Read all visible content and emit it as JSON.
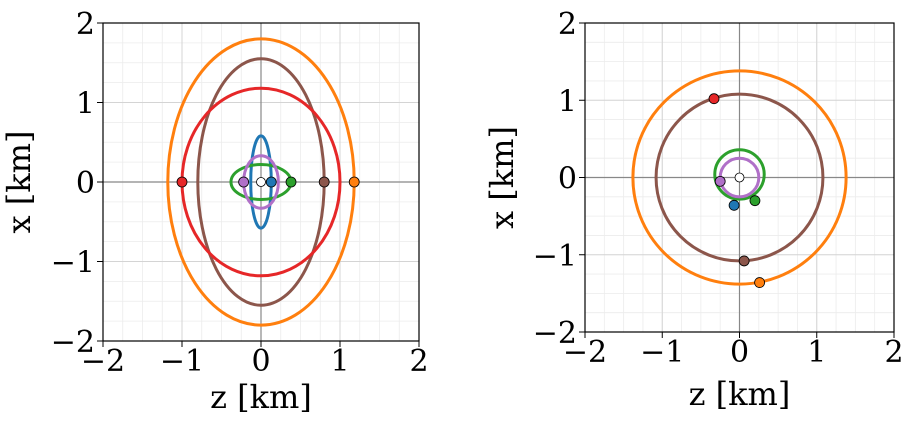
{
  "chart_data": [
    {
      "type": "line",
      "subtype": "orbit-ellipses",
      "xlabel": "z [km]",
      "ylabel": "x [km]",
      "xlim": [
        -2,
        2
      ],
      "ylim": [
        -2,
        2
      ],
      "xticks": [
        -2,
        -1,
        0,
        1,
        2
      ],
      "yticks": [
        -2,
        -1,
        0,
        1,
        2
      ],
      "grid": true,
      "aspect": "equal",
      "center_marker": {
        "z": 0,
        "x": 0,
        "color": "#ffffff"
      },
      "series": [
        {
          "shape": "ellipse",
          "color": "#ff7f0e",
          "z_semi": 1.18,
          "x_semi": 1.8,
          "marker": {
            "z": 1.18,
            "x": 0
          }
        },
        {
          "shape": "ellipse",
          "color": "#8c564b",
          "z_semi": 0.8,
          "x_semi": 1.55,
          "marker": {
            "z": 0.8,
            "x": 0
          }
        },
        {
          "shape": "ellipse",
          "color": "#e62728",
          "z_semi": 1.0,
          "x_semi": 1.18,
          "marker": {
            "z": -1.0,
            "x": 0
          }
        },
        {
          "shape": "ellipse",
          "color": "#1f77b4",
          "z_semi": 0.13,
          "x_semi": 0.58,
          "marker": {
            "z": 0.13,
            "x": 0
          }
        },
        {
          "shape": "ellipse",
          "color": "#2ca02c",
          "z_semi": 0.38,
          "x_semi": 0.22,
          "marker": {
            "z": 0.38,
            "x": 0
          }
        },
        {
          "shape": "ellipse",
          "color": "#b070c8",
          "z_semi": 0.22,
          "x_semi": 0.33,
          "marker": {
            "z": -0.22,
            "x": 0
          }
        }
      ]
    },
    {
      "type": "line",
      "subtype": "orbit-circles",
      "xlabel": "z [km]",
      "ylabel": "x [km]",
      "xlim": [
        -2,
        2
      ],
      "ylim": [
        -2,
        2
      ],
      "xticks": [
        -2,
        -1,
        0,
        1,
        2
      ],
      "yticks": [
        -2,
        -1,
        0,
        1,
        2
      ],
      "grid": true,
      "aspect": "equal",
      "center_marker": {
        "z": 0,
        "x": 0,
        "color": "#ffffff"
      },
      "series": [
        {
          "shape": "circle",
          "color": "#ff7f0e",
          "cz": 0.0,
          "cx": 0.0,
          "r": 1.38,
          "marker": {
            "z": 0.26,
            "x": -1.36
          }
        },
        {
          "shape": "circle",
          "color": "#8c564b",
          "cz": 0.0,
          "cx": 0.0,
          "r": 1.08,
          "marker": {
            "z": 0.06,
            "x": -1.08
          }
        },
        {
          "shape": "circle",
          "color": "#2ca02c",
          "cz": 0.0,
          "cx": 0.04,
          "r": 0.32,
          "marker": {
            "z": 0.2,
            "x": -0.3
          }
        },
        {
          "shape": "circle",
          "color": "#b070c8",
          "cz": 0.0,
          "cx": 0.0,
          "r": 0.25,
          "marker": {
            "z": -0.25,
            "x": -0.05
          }
        },
        {
          "shape": "point",
          "color": "#e62728",
          "marker": {
            "z": -0.33,
            "x": 1.02
          }
        },
        {
          "shape": "point",
          "color": "#1f77b4",
          "marker": {
            "z": -0.07,
            "x": -0.36
          }
        }
      ]
    }
  ]
}
